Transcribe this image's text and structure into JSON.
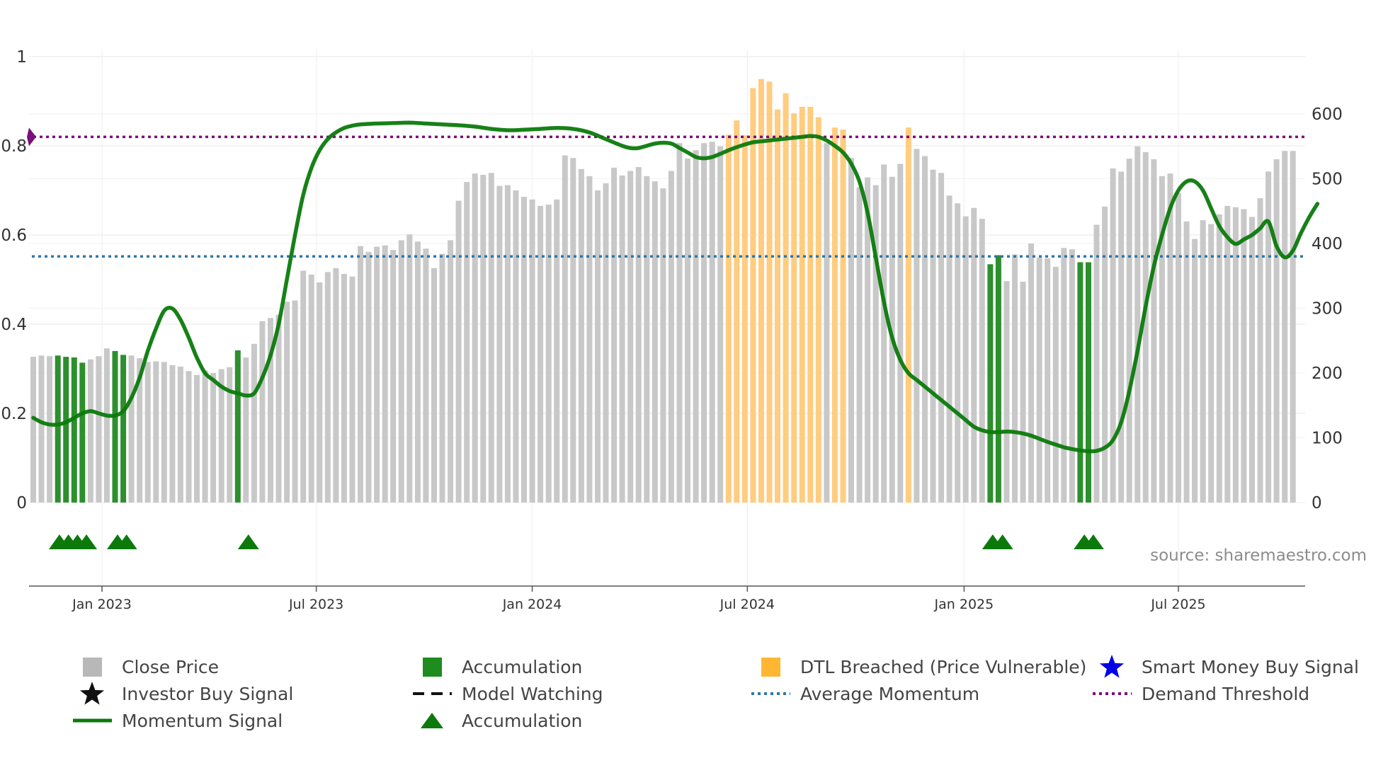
{
  "chart_data": {
    "type": "bar",
    "source": "source: sharemaestro.com",
    "left_axis": {
      "ticks": [
        "0",
        "0.2",
        "0.4",
        "0.6",
        "0.8",
        "1"
      ],
      "tick_values": [
        0,
        0.2,
        0.4,
        0.6,
        0.8,
        1
      ],
      "ylim": [
        0,
        1
      ]
    },
    "right_axis": {
      "ticks": [
        "0",
        "100",
        "200",
        "300",
        "400",
        "500",
        "600"
      ],
      "tick_values": [
        0,
        100,
        200,
        300,
        400,
        500,
        600
      ],
      "ylim": [
        0,
        690
      ]
    },
    "x_ticks": [
      {
        "label": "Jan 2023",
        "t": 8.4
      },
      {
        "label": "Jul 2023",
        "t": 34.6
      },
      {
        "label": "Jan 2024",
        "t": 61.0
      },
      {
        "label": "Jul 2024",
        "t": 87.3
      },
      {
        "label": "Jan 2025",
        "t": 113.8
      },
      {
        "label": "Jul 2025",
        "t": 140.0
      }
    ],
    "bars": [
      {
        "v": 225,
        "c": "gray"
      },
      {
        "v": 227,
        "c": "gray"
      },
      {
        "v": 226,
        "c": "gray"
      },
      {
        "v": 227,
        "c": "green"
      },
      {
        "v": 225,
        "c": "green"
      },
      {
        "v": 224,
        "c": "green"
      },
      {
        "v": 216,
        "c": "green"
      },
      {
        "v": 221,
        "c": "gray"
      },
      {
        "v": 226,
        "c": "gray"
      },
      {
        "v": 238,
        "c": "gray"
      },
      {
        "v": 234,
        "c": "green"
      },
      {
        "v": 228,
        "c": "green"
      },
      {
        "v": 227,
        "c": "gray"
      },
      {
        "v": 223,
        "c": "gray"
      },
      {
        "v": 217,
        "c": "gray"
      },
      {
        "v": 218,
        "c": "gray"
      },
      {
        "v": 217,
        "c": "gray"
      },
      {
        "v": 212,
        "c": "gray"
      },
      {
        "v": 210,
        "c": "gray"
      },
      {
        "v": 203,
        "c": "gray"
      },
      {
        "v": 197,
        "c": "gray"
      },
      {
        "v": 204,
        "c": "gray"
      },
      {
        "v": 200,
        "c": "gray"
      },
      {
        "v": 206,
        "c": "gray"
      },
      {
        "v": 209,
        "c": "gray"
      },
      {
        "v": 235,
        "c": "green"
      },
      {
        "v": 224,
        "c": "gray"
      },
      {
        "v": 245,
        "c": "gray"
      },
      {
        "v": 280,
        "c": "gray"
      },
      {
        "v": 285,
        "c": "gray"
      },
      {
        "v": 290,
        "c": "gray"
      },
      {
        "v": 310,
        "c": "gray"
      },
      {
        "v": 312,
        "c": "gray"
      },
      {
        "v": 358,
        "c": "gray"
      },
      {
        "v": 352,
        "c": "gray"
      },
      {
        "v": 340,
        "c": "gray"
      },
      {
        "v": 356,
        "c": "gray"
      },
      {
        "v": 362,
        "c": "gray"
      },
      {
        "v": 353,
        "c": "gray"
      },
      {
        "v": 349,
        "c": "gray"
      },
      {
        "v": 396,
        "c": "gray"
      },
      {
        "v": 387,
        "c": "gray"
      },
      {
        "v": 395,
        "c": "gray"
      },
      {
        "v": 397,
        "c": "gray"
      },
      {
        "v": 390,
        "c": "gray"
      },
      {
        "v": 405,
        "c": "gray"
      },
      {
        "v": 414,
        "c": "gray"
      },
      {
        "v": 403,
        "c": "gray"
      },
      {
        "v": 392,
        "c": "gray"
      },
      {
        "v": 362,
        "c": "gray"
      },
      {
        "v": 384,
        "c": "gray"
      },
      {
        "v": 405,
        "c": "gray"
      },
      {
        "v": 466,
        "c": "gray"
      },
      {
        "v": 495,
        "c": "gray"
      },
      {
        "v": 508,
        "c": "gray"
      },
      {
        "v": 506,
        "c": "gray"
      },
      {
        "v": 509,
        "c": "gray"
      },
      {
        "v": 489,
        "c": "gray"
      },
      {
        "v": 490,
        "c": "gray"
      },
      {
        "v": 482,
        "c": "gray"
      },
      {
        "v": 472,
        "c": "gray"
      },
      {
        "v": 468,
        "c": "gray"
      },
      {
        "v": 458,
        "c": "gray"
      },
      {
        "v": 460,
        "c": "gray"
      },
      {
        "v": 468,
        "c": "gray"
      },
      {
        "v": 536,
        "c": "gray"
      },
      {
        "v": 532,
        "c": "gray"
      },
      {
        "v": 515,
        "c": "gray"
      },
      {
        "v": 504,
        "c": "gray"
      },
      {
        "v": 482,
        "c": "gray"
      },
      {
        "v": 493,
        "c": "gray"
      },
      {
        "v": 517,
        "c": "gray"
      },
      {
        "v": 505,
        "c": "gray"
      },
      {
        "v": 512,
        "c": "gray"
      },
      {
        "v": 518,
        "c": "gray"
      },
      {
        "v": 504,
        "c": "gray"
      },
      {
        "v": 496,
        "c": "gray"
      },
      {
        "v": 485,
        "c": "gray"
      },
      {
        "v": 512,
        "c": "gray"
      },
      {
        "v": 555,
        "c": "gray"
      },
      {
        "v": 531,
        "c": "gray"
      },
      {
        "v": 544,
        "c": "gray"
      },
      {
        "v": 555,
        "c": "gray"
      },
      {
        "v": 557,
        "c": "gray"
      },
      {
        "v": 550,
        "c": "gray"
      },
      {
        "v": 568,
        "c": "orange"
      },
      {
        "v": 590,
        "c": "orange"
      },
      {
        "v": 567,
        "c": "orange"
      },
      {
        "v": 640,
        "c": "orange"
      },
      {
        "v": 654,
        "c": "orange"
      },
      {
        "v": 650,
        "c": "orange"
      },
      {
        "v": 607,
        "c": "orange"
      },
      {
        "v": 632,
        "c": "orange"
      },
      {
        "v": 601,
        "c": "orange"
      },
      {
        "v": 611,
        "c": "orange"
      },
      {
        "v": 611,
        "c": "orange"
      },
      {
        "v": 595,
        "c": "orange"
      },
      {
        "v": 555,
        "c": "gray"
      },
      {
        "v": 579,
        "c": "orange"
      },
      {
        "v": 576,
        "c": "orange"
      },
      {
        "v": 532,
        "c": "gray"
      },
      {
        "v": 487,
        "c": "gray"
      },
      {
        "v": 502,
        "c": "gray"
      },
      {
        "v": 490,
        "c": "gray"
      },
      {
        "v": 522,
        "c": "gray"
      },
      {
        "v": 503,
        "c": "gray"
      },
      {
        "v": 523,
        "c": "gray"
      },
      {
        "v": 579,
        "c": "orange"
      },
      {
        "v": 546,
        "c": "gray"
      },
      {
        "v": 535,
        "c": "gray"
      },
      {
        "v": 514,
        "c": "gray"
      },
      {
        "v": 509,
        "c": "gray"
      },
      {
        "v": 474,
        "c": "gray"
      },
      {
        "v": 462,
        "c": "gray"
      },
      {
        "v": 442,
        "c": "gray"
      },
      {
        "v": 455,
        "c": "gray"
      },
      {
        "v": 438,
        "c": "gray"
      },
      {
        "v": 368,
        "c": "green"
      },
      {
        "v": 382,
        "c": "green"
      },
      {
        "v": 342,
        "c": "gray"
      },
      {
        "v": 383,
        "c": "gray"
      },
      {
        "v": 341,
        "c": "gray"
      },
      {
        "v": 400,
        "c": "gray"
      },
      {
        "v": 378,
        "c": "gray"
      },
      {
        "v": 377,
        "c": "gray"
      },
      {
        "v": 364,
        "c": "gray"
      },
      {
        "v": 393,
        "c": "gray"
      },
      {
        "v": 391,
        "c": "gray"
      },
      {
        "v": 371,
        "c": "green"
      },
      {
        "v": 371,
        "c": "green"
      },
      {
        "v": 429,
        "c": "gray"
      },
      {
        "v": 457,
        "c": "gray"
      },
      {
        "v": 516,
        "c": "gray"
      },
      {
        "v": 511,
        "c": "gray"
      },
      {
        "v": 531,
        "c": "gray"
      },
      {
        "v": 550,
        "c": "gray"
      },
      {
        "v": 541,
        "c": "gray"
      },
      {
        "v": 530,
        "c": "gray"
      },
      {
        "v": 504,
        "c": "gray"
      },
      {
        "v": 508,
        "c": "gray"
      },
      {
        "v": 478,
        "c": "gray"
      },
      {
        "v": 434,
        "c": "gray"
      },
      {
        "v": 407,
        "c": "gray"
      },
      {
        "v": 436,
        "c": "gray"
      },
      {
        "v": 430,
        "c": "gray"
      },
      {
        "v": 445,
        "c": "gray"
      },
      {
        "v": 458,
        "c": "gray"
      },
      {
        "v": 456,
        "c": "gray"
      },
      {
        "v": 453,
        "c": "gray"
      },
      {
        "v": 441,
        "c": "gray"
      },
      {
        "v": 470,
        "c": "gray"
      },
      {
        "v": 511,
        "c": "gray"
      },
      {
        "v": 530,
        "c": "gray"
      },
      {
        "v": 543,
        "c": "gray"
      },
      {
        "v": 543,
        "c": "gray"
      }
    ],
    "momentum": [
      [
        0,
        0.19
      ],
      [
        1,
        0.18
      ],
      [
        2,
        0.175
      ],
      [
        3,
        0.175
      ],
      [
        4,
        0.18
      ],
      [
        5,
        0.19
      ],
      [
        6,
        0.2
      ],
      [
        7,
        0.205
      ],
      [
        8,
        0.2
      ],
      [
        9,
        0.195
      ],
      [
        10,
        0.195
      ],
      [
        11,
        0.205
      ],
      [
        12,
        0.235
      ],
      [
        13,
        0.28
      ],
      [
        14,
        0.34
      ],
      [
        15,
        0.39
      ],
      [
        16,
        0.43
      ],
      [
        17,
        0.435
      ],
      [
        18,
        0.41
      ],
      [
        19,
        0.37
      ],
      [
        20,
        0.325
      ],
      [
        21,
        0.29
      ],
      [
        22,
        0.275
      ],
      [
        23,
        0.26
      ],
      [
        24,
        0.25
      ],
      [
        25,
        0.245
      ],
      [
        26,
        0.24
      ],
      [
        27,
        0.245
      ],
      [
        28,
        0.28
      ],
      [
        29,
        0.33
      ],
      [
        30,
        0.4
      ],
      [
        31,
        0.5
      ],
      [
        32,
        0.6
      ],
      [
        33,
        0.69
      ],
      [
        34,
        0.75
      ],
      [
        35,
        0.79
      ],
      [
        36,
        0.815
      ],
      [
        37,
        0.83
      ],
      [
        38,
        0.84
      ],
      [
        39,
        0.845
      ],
      [
        40,
        0.848
      ],
      [
        42,
        0.85
      ],
      [
        44,
        0.851
      ],
      [
        46,
        0.852
      ],
      [
        48,
        0.85
      ],
      [
        50,
        0.848
      ],
      [
        52,
        0.846
      ],
      [
        54,
        0.843
      ],
      [
        56,
        0.838
      ],
      [
        58,
        0.835
      ],
      [
        60,
        0.836
      ],
      [
        62,
        0.838
      ],
      [
        64,
        0.84
      ],
      [
        66,
        0.838
      ],
      [
        68,
        0.83
      ],
      [
        70,
        0.815
      ],
      [
        72,
        0.8
      ],
      [
        73,
        0.795
      ],
      [
        74,
        0.795
      ],
      [
        75,
        0.8
      ],
      [
        76,
        0.805
      ],
      [
        77,
        0.807
      ],
      [
        78,
        0.805
      ],
      [
        79,
        0.795
      ],
      [
        80,
        0.785
      ],
      [
        81,
        0.775
      ],
      [
        82,
        0.772
      ],
      [
        83,
        0.775
      ],
      [
        84,
        0.782
      ],
      [
        85,
        0.79
      ],
      [
        86,
        0.797
      ],
      [
        87,
        0.803
      ],
      [
        88,
        0.808
      ],
      [
        89,
        0.81
      ],
      [
        90,
        0.812
      ],
      [
        91,
        0.814
      ],
      [
        92,
        0.816
      ],
      [
        93,
        0.818
      ],
      [
        94,
        0.82
      ],
      [
        95,
        0.822
      ],
      [
        96,
        0.82
      ],
      [
        97,
        0.812
      ],
      [
        98,
        0.8
      ],
      [
        99,
        0.785
      ],
      [
        100,
        0.76
      ],
      [
        101,
        0.72
      ],
      [
        102,
        0.65
      ],
      [
        103,
        0.55
      ],
      [
        104,
        0.45
      ],
      [
        105,
        0.37
      ],
      [
        106,
        0.32
      ],
      [
        107,
        0.29
      ],
      [
        108,
        0.275
      ],
      [
        109,
        0.26
      ],
      [
        110,
        0.245
      ],
      [
        111,
        0.23
      ],
      [
        112,
        0.215
      ],
      [
        113,
        0.2
      ],
      [
        114,
        0.185
      ],
      [
        115,
        0.17
      ],
      [
        116,
        0.162
      ],
      [
        117,
        0.158
      ],
      [
        118,
        0.158
      ],
      [
        119,
        0.159
      ],
      [
        120,
        0.158
      ],
      [
        121,
        0.155
      ],
      [
        122,
        0.15
      ],
      [
        123,
        0.143
      ],
      [
        124,
        0.136
      ],
      [
        125,
        0.13
      ],
      [
        126,
        0.124
      ],
      [
        127,
        0.12
      ],
      [
        128,
        0.117
      ],
      [
        129,
        0.115
      ],
      [
        130,
        0.116
      ],
      [
        131,
        0.123
      ],
      [
        132,
        0.14
      ],
      [
        133,
        0.18
      ],
      [
        134,
        0.25
      ],
      [
        135,
        0.34
      ],
      [
        136,
        0.44
      ],
      [
        137,
        0.53
      ],
      [
        138,
        0.6
      ],
      [
        139,
        0.66
      ],
      [
        140,
        0.7
      ],
      [
        141,
        0.72
      ],
      [
        142,
        0.72
      ],
      [
        143,
        0.7
      ],
      [
        144,
        0.66
      ],
      [
        145,
        0.62
      ],
      [
        146,
        0.595
      ],
      [
        147,
        0.58
      ],
      [
        148,
        0.59
      ],
      [
        149,
        0.6
      ],
      [
        150,
        0.615
      ],
      [
        151,
        0.63
      ],
      [
        152,
        0.575
      ],
      [
        153,
        0.55
      ],
      [
        154,
        0.565
      ],
      [
        155,
        0.605
      ],
      [
        156,
        0.64
      ],
      [
        157,
        0.67
      ]
    ],
    "average_momentum": 0.552,
    "demand_threshold": 0.82,
    "accumulation_markers": [
      3.2,
      4.3,
      5.4,
      6.5,
      10.3,
      11.4,
      26.3,
      117.3,
      118.5,
      128.5,
      129.6
    ],
    "legend": [
      {
        "label": "Close Price",
        "symbol": "square",
        "color": "#b8b8b8"
      },
      {
        "label": "Accumulation",
        "symbol": "square",
        "color": "#1e8c1e"
      },
      {
        "label": "DTL Breached (Price Vulnerable)",
        "symbol": "square",
        "color": "#ffb733"
      },
      {
        "label": "Smart Money Buy Signal",
        "symbol": "star",
        "color": "#0000e6"
      },
      {
        "label": "Investor Buy Signal",
        "symbol": "star",
        "color": "#111111"
      },
      {
        "label": "Model Watching",
        "symbol": "dash",
        "color": "#111111"
      },
      {
        "label": "Average Momentum",
        "symbol": "dot",
        "color": "#2f78a8"
      },
      {
        "label": "Demand Threshold",
        "symbol": "dot",
        "color": "#7b0f7b"
      },
      {
        "label": "Momentum Signal",
        "symbol": "line",
        "color": "#0b7a0b"
      },
      {
        "label": "Accumulation",
        "symbol": "triangle",
        "color": "#0b7a0b"
      }
    ],
    "colors": {
      "gray": "#c8c8c8",
      "green": "#2d8f2d",
      "orange": "#ffcc80",
      "momentum": "#0b7a0b",
      "average": "#2f78a8",
      "threshold": "#7b0f7b",
      "grid": "#ececec",
      "axis": "#555555"
    }
  }
}
